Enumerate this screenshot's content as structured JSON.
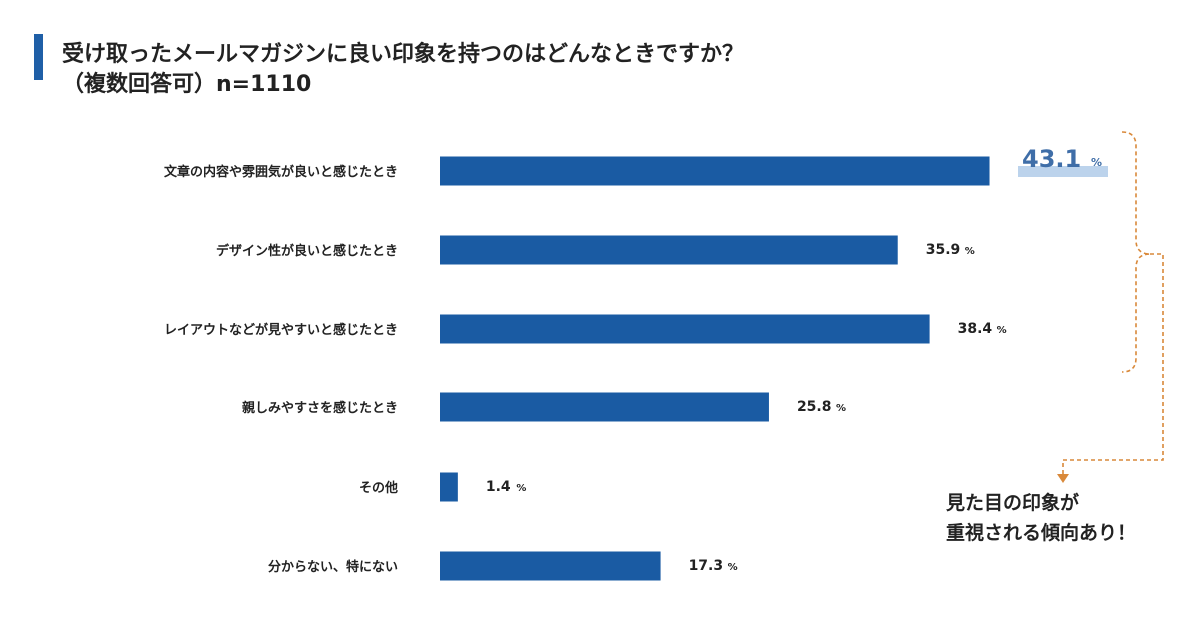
{
  "title": {
    "line1": "受け取ったメールマガジンに良い印象を持つのはどんなときですか？",
    "line2": "（複数回答可）n=1110"
  },
  "note": {
    "line1": "見た目の印象が",
    "line2": "重視される傾向あり！"
  },
  "colors": {
    "bar": "#1a5ba3",
    "accent": "#1f5fa7",
    "highlight_text": "#3f6ea8",
    "highlight_band": "#bcd3ec",
    "bracket": "#d9893a"
  },
  "chart_data": {
    "type": "bar",
    "orientation": "horizontal",
    "unit": "%",
    "categories": [
      "文章の内容や雰囲気が良いと感じたとき",
      "デザイン性が良いと感じたとき",
      "レイアウトなどが見やすいと感じたとき",
      "親しみやすさを感じたとき",
      "その他",
      "分からない、特にない"
    ],
    "values": [
      43.1,
      35.9,
      38.4,
      25.8,
      1.4,
      17.3
    ],
    "value_labels": [
      "43.1",
      "35.9",
      "38.4",
      "25.8",
      "1.4",
      "17.3"
    ],
    "highlight_index": 0,
    "bracket_group": [
      0,
      1,
      2
    ]
  }
}
